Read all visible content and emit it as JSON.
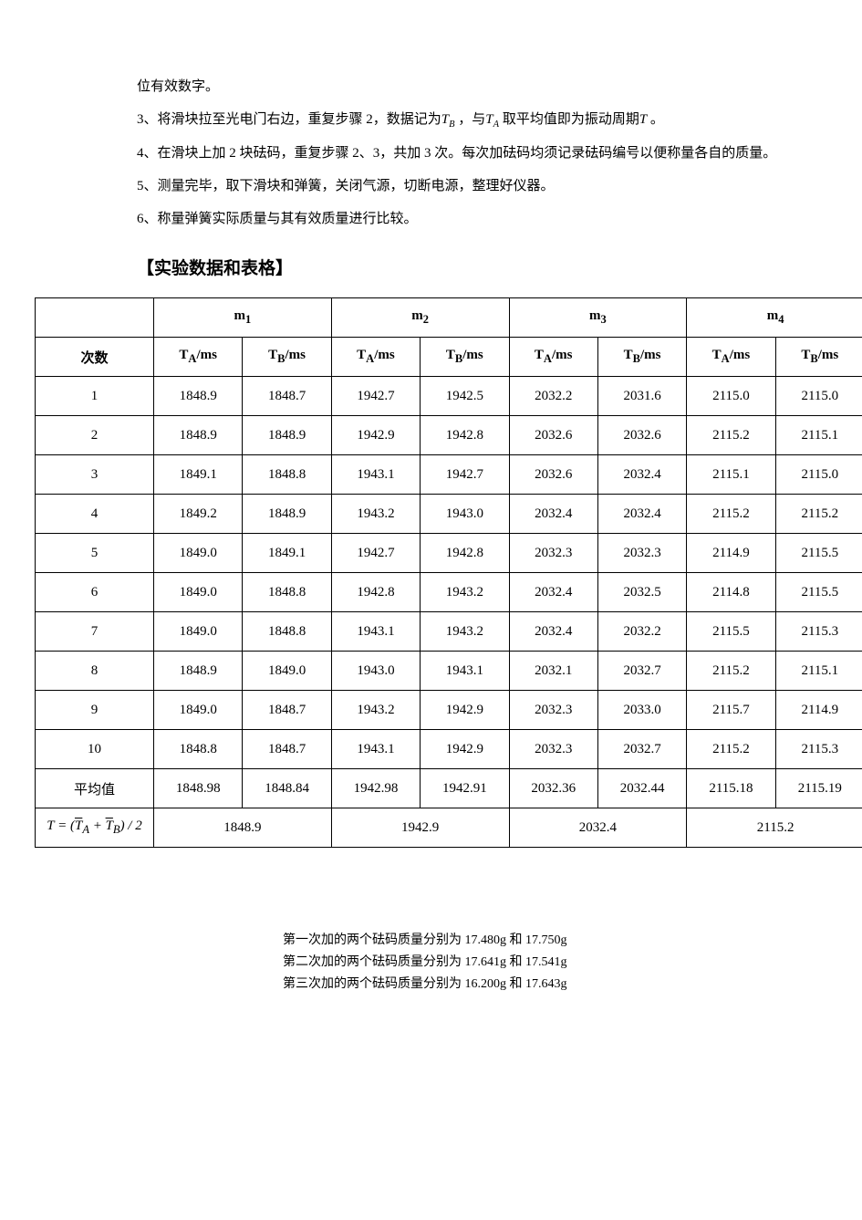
{
  "paragraphs": {
    "p0": "位有效数字。",
    "p3_a": "3、将滑块拉至光电门右边，重复步骤 2，数据记为",
    "p3_b": "，与",
    "p3_c": "取平均值即为振动周期",
    "p3_d": "。",
    "p4": "4、在滑块上加 2 块砝码，重复步骤 2、3，共加 3 次。每次加砝码均须记录砝码编号以便称量各自的质量。",
    "p5": "5、测量完毕，取下滑块和弹簧，关闭气源，切断电源，整理好仪器。",
    "p6": "6、称量弹簧实际质量与其有效质量进行比较。"
  },
  "heading": "【实验数据和表格】",
  "symbols": {
    "TB": "T",
    "TB_sub": "B",
    "TA": "T",
    "TA_sub": "A",
    "T": "T"
  },
  "table": {
    "mass_headers": [
      "m",
      "m",
      "m",
      "m"
    ],
    "mass_subs": [
      "1",
      "2",
      "3",
      "4"
    ],
    "sub_headers_row_label": "次数",
    "sub_headers": [
      "T",
      "T",
      "T",
      "T",
      "T",
      "T",
      "T",
      "T"
    ],
    "sub_header_subs": [
      "A",
      "B",
      "A",
      "B",
      "A",
      "B",
      "A",
      "B"
    ],
    "sub_header_unit": "/ms",
    "row_labels": [
      "1",
      "2",
      "3",
      "4",
      "5",
      "6",
      "7",
      "8",
      "9",
      "10",
      "平均值"
    ],
    "data": [
      [
        "1848.9",
        "1848.7",
        "1942.7",
        "1942.5",
        "2032.2",
        "2031.6",
        "2115.0",
        "2115.0"
      ],
      [
        "1848.9",
        "1848.9",
        "1942.9",
        "1942.8",
        "2032.6",
        "2032.6",
        "2115.2",
        "2115.1"
      ],
      [
        "1849.1",
        "1848.8",
        "1943.1",
        "1942.7",
        "2032.6",
        "2032.4",
        "2115.1",
        "2115.0"
      ],
      [
        "1849.2",
        "1848.9",
        "1943.2",
        "1943.0",
        "2032.4",
        "2032.4",
        "2115.2",
        "2115.2"
      ],
      [
        "1849.0",
        "1849.1",
        "1942.7",
        "1942.8",
        "2032.3",
        "2032.3",
        "2114.9",
        "2115.5"
      ],
      [
        "1849.0",
        "1848.8",
        "1942.8",
        "1943.2",
        "2032.4",
        "2032.5",
        "2114.8",
        "2115.5"
      ],
      [
        "1849.0",
        "1848.8",
        "1943.1",
        "1943.2",
        "2032.4",
        "2032.2",
        "2115.5",
        "2115.3"
      ],
      [
        "1848.9",
        "1849.0",
        "1943.0",
        "1943.1",
        "2032.1",
        "2032.7",
        "2115.2",
        "2115.1"
      ],
      [
        "1849.0",
        "1848.7",
        "1943.2",
        "1942.9",
        "2032.3",
        "2033.0",
        "2115.7",
        "2114.9"
      ],
      [
        "1848.8",
        "1848.7",
        "1943.1",
        "1942.9",
        "2032.3",
        "2032.7",
        "2115.2",
        "2115.3"
      ],
      [
        "1848.98",
        "1848.84",
        "1942.98",
        "1942.91",
        "2032.36",
        "2032.44",
        "2115.18",
        "2115.19"
      ]
    ],
    "final_row_values": [
      "1848.9",
      "1942.9",
      "2032.4",
      "2115.2"
    ]
  },
  "footer": {
    "l1": "第一次加的两个砝码质量分别为 17.480g 和 17.750g",
    "l2": "第二次加的两个砝码质量分别为 17.641g 和 17.541g",
    "l3": "第三次加的两个砝码质量分别为 16.200g 和 17.643g"
  }
}
